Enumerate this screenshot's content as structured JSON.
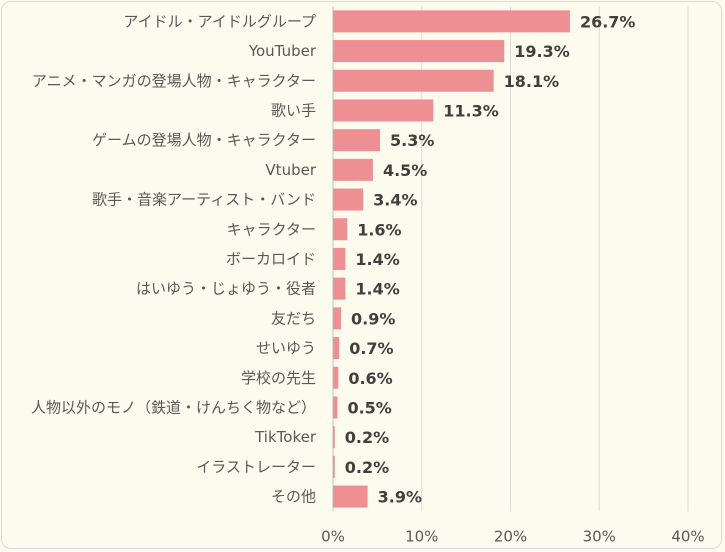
{
  "chart_data": {
    "type": "bar",
    "orientation": "horizontal",
    "categories": [
      "アイドル・アイドルグループ",
      "YouTuber",
      "アニメ・マンガの登場人物・キャラクター",
      "歌い手",
      "ゲームの登場人物・キャラクター",
      "Vtuber",
      "歌手・音楽アーティスト・バンド",
      "キャラクター",
      "ボーカロイド",
      "はいゆう・じょゆう・役者",
      "友だち",
      "せいゆう",
      "学校の先生",
      "人物以外のモノ（鉄道・けんちく物など）",
      "TikToker",
      "イラストレーター",
      "その他"
    ],
    "values": [
      26.7,
      19.3,
      18.1,
      11.3,
      5.3,
      4.5,
      3.4,
      1.6,
      1.4,
      1.4,
      0.9,
      0.7,
      0.6,
      0.5,
      0.2,
      0.2,
      3.9
    ],
    "value_labels": [
      "26.7%",
      "19.3%",
      "18.1%",
      "11.3%",
      "5.3%",
      "4.5%",
      "3.4%",
      "1.6%",
      "1.4%",
      "1.4%",
      "0.9%",
      "0.7%",
      "0.6%",
      "0.5%",
      "0.2%",
      "0.2%",
      "3.9%"
    ],
    "xlim": [
      0,
      40
    ],
    "xticks": [
      0,
      10,
      20,
      30,
      40
    ],
    "xtick_labels": [
      "0%",
      "10%",
      "20%",
      "30%",
      "40%"
    ],
    "grid": true,
    "bar_color": "#ee9093",
    "background_color": "#fdfbed"
  }
}
